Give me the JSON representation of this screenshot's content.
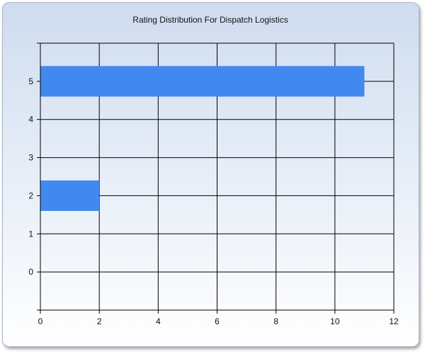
{
  "chart_data": {
    "type": "bar",
    "orientation": "horizontal",
    "title": "Rating Distribution For Dispatch Logistics",
    "xlabel": "",
    "ylabel": "",
    "bars": [
      {
        "category": 5,
        "value": 11
      },
      {
        "category": 2,
        "value": 2
      }
    ],
    "xlim": [
      0,
      12
    ],
    "ylim": [
      -1,
      6
    ],
    "x_ticks": [
      0,
      2,
      4,
      6,
      8,
      10,
      12
    ],
    "y_ticks": [
      0,
      1,
      2,
      3,
      4,
      5
    ],
    "grid": true,
    "legend": "none",
    "colors": {
      "bar": "#4189ee",
      "grid": "#000000"
    }
  }
}
